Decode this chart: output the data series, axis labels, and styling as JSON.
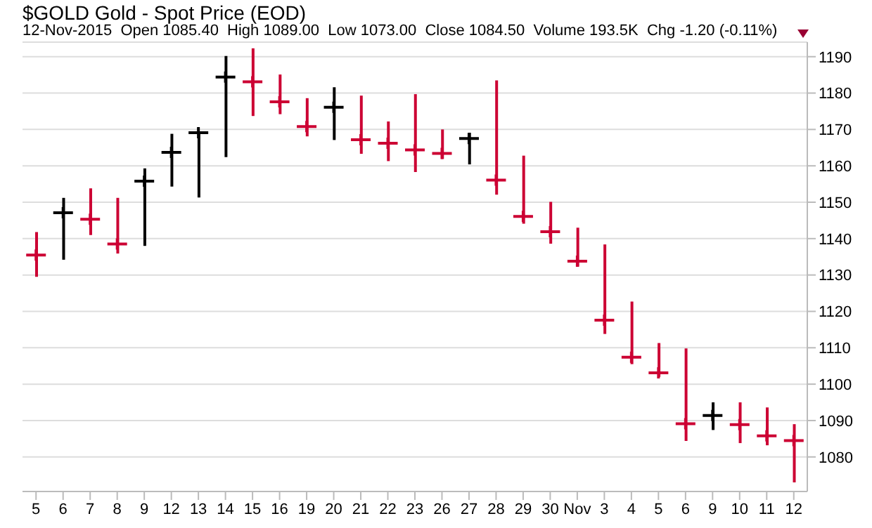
{
  "chart_data": {
    "type": "bar",
    "title": "$GOLD Gold - Spot Price (EOD)",
    "subtitle": "12-Nov-2015  Open 1085.40  High 1089.00  Low 1073.00  Close 1084.50  Volume 193.5K  Chg -1.20 (-0.11%)",
    "categories": [
      "5",
      "6",
      "7",
      "8",
      "9",
      "12",
      "13",
      "14",
      "15",
      "16",
      "19",
      "20",
      "21",
      "22",
      "23",
      "26",
      "27",
      "28",
      "29",
      "30",
      "Nov",
      "3",
      "4",
      "5",
      "6",
      "9",
      "10",
      "11",
      "12"
    ],
    "series": [
      {
        "base": [
          1129.5,
          1134.2,
          1141,
          1135.9,
          1138,
          1154.3,
          1151.3,
          1162.4,
          1173.7,
          1174.2,
          1168.1,
          1167.1,
          1163.3,
          1161.3,
          1158.3,
          1161.9,
          1160.4,
          1152.1,
          1144.1,
          1138.6,
          1132.3,
          1113.8,
          1105.5,
          1102,
          1084.4,
          1087.4,
          1083.8,
          1083.2,
          1073
        ],
        "values": [
          12.3,
          17,
          12.8,
          15.3,
          21.3,
          14.5,
          17.8,
          27.8,
          18.6,
          10.9,
          10.5,
          14.5,
          16,
          10.9,
          21.4,
          8.1,
          8.7,
          31.4,
          18.7,
          11.5,
          10.7,
          24.6,
          17.2,
          9.3,
          25.4,
          7.6,
          11.2,
          10.4,
          16
        ],
        "colors": [
          "#cc0033",
          "#000000",
          "#cc0033",
          "#cc0033",
          "#000000",
          "#000000",
          "#000000",
          "#000000",
          "#cc0033",
          "#cc0033",
          "#cc0033",
          "#000000",
          "#cc0033",
          "#cc0033",
          "#cc0033",
          "#cc0033",
          "#000000",
          "#cc0033",
          "#cc0033",
          "#cc0033",
          "#cc0033",
          "#cc0033",
          "#cc0033",
          "#cc0033",
          "#cc0033",
          "#000000",
          "#cc0033",
          "#cc0033",
          "#cc0033"
        ]
      },
      {
        "type": "scatter",
        "marker": "cross",
        "values": [
          1135.5,
          1147.1,
          1145.3,
          1138.5,
          1155.8,
          1163.7,
          1169.1,
          1184.4,
          1183.1,
          1177.6,
          1170.8,
          1176.1,
          1167.2,
          1166.2,
          1164.4,
          1163.4,
          1167.5,
          1156.1,
          1146.1,
          1141.9,
          1133.8,
          1117.6,
          1107.4,
          1103.1,
          1089.1,
          1091.4,
          1088.9,
          1085.8,
          1084.5
        ],
        "colors": [
          "#cc0033",
          "#000000",
          "#cc0033",
          "#cc0033",
          "#000000",
          "#000000",
          "#000000",
          "#000000",
          "#cc0033",
          "#cc0033",
          "#cc0033",
          "#000000",
          "#cc0033",
          "#cc0033",
          "#cc0033",
          "#cc0033",
          "#000000",
          "#cc0033",
          "#cc0033",
          "#cc0033",
          "#cc0033",
          "#cc0033",
          "#cc0033",
          "#cc0033",
          "#cc0033",
          "#000000",
          "#cc0033",
          "#cc0033",
          "#cc0033"
        ]
      }
    ],
    "ylim": [
      1070.5,
      1194
    ],
    "yticks": [
      1080,
      1090,
      1100,
      1110,
      1120,
      1130,
      1140,
      1150,
      1160,
      1170,
      1180,
      1190
    ],
    "grid": "y",
    "legend": false
  }
}
